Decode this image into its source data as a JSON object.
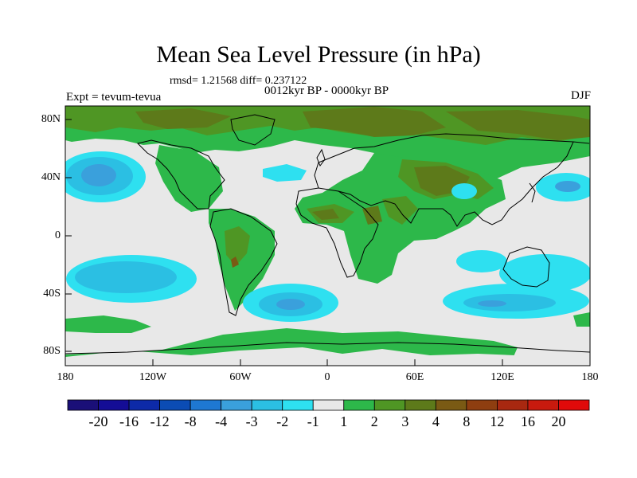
{
  "title": "Mean Sea Level Pressure (in hPa)",
  "stats": "rmsd= 1.21568 diff= 0.237122",
  "period": "0012kyr BP - 0000kyr BP",
  "experiment": "Expt = tevum-tevua",
  "season": "DJF",
  "lat_ticks": [
    "80N",
    "40N",
    "0",
    "40S",
    "80S"
  ],
  "lon_ticks": [
    "180",
    "120W",
    "60W",
    "0",
    "60E",
    "120E",
    "180"
  ],
  "colorbar": {
    "labels": [
      "-20",
      "-16",
      "-12",
      "-8",
      "-4",
      "-3",
      "-2",
      "-1",
      "1",
      "2",
      "3",
      "4",
      "8",
      "12",
      "16",
      "20"
    ],
    "colors": [
      "#1a0f78",
      "#140d96",
      "#0d2aa8",
      "#0b4cb4",
      "#1e78d2",
      "#3aa0dc",
      "#2bbfe3",
      "#2ee0f0",
      "#e8e8e8",
      "#2db84a",
      "#4f9624",
      "#5d7a1a",
      "#7a5a14",
      "#8e3e10",
      "#a82810",
      "#c81a0e",
      "#e00a0a"
    ]
  },
  "legend_colors": {
    "neutral": "#e8e8e8",
    "green_light": "#2db84a",
    "green_dark": "#4f9624",
    "olive": "#5d7a1a",
    "brown": "#7a5a14",
    "cyan": "#2ee0f0",
    "lightblue": "#2bbfe3",
    "blue": "#3aa0dc",
    "darkblue": "#1e78d2"
  }
}
